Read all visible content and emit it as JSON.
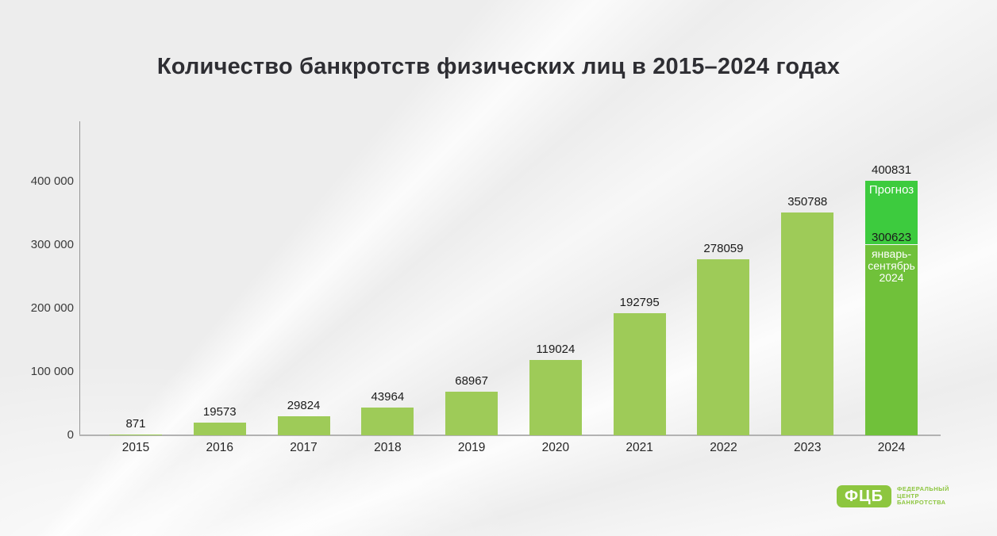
{
  "title": "Количество банкротств физических лиц в 2015–2024 годах",
  "chart_data": {
    "type": "bar",
    "title": "Количество банкротств физических лиц в 2015–2024 годах",
    "categories": [
      "2015",
      "2016",
      "2017",
      "2018",
      "2019",
      "2020",
      "2021",
      "2022",
      "2023",
      "2024"
    ],
    "values": [
      871,
      19573,
      29824,
      43964,
      68967,
      119024,
      192795,
      278059,
      350788,
      400831
    ],
    "value_labels": [
      "871",
      "19573",
      "29824",
      "43964",
      "68967",
      "119024",
      "192795",
      "278059",
      "350788",
      "400831"
    ],
    "forecast": {
      "year": "2024",
      "total": 400831,
      "total_label": "400831",
      "actual": 300623,
      "actual_value_label": "300623",
      "forecast_segment_label": "Прогноз",
      "actual_segment_label": "январь-\nсентябрь\n2024"
    },
    "xlabel": "",
    "ylabel": "",
    "ylim": [
      0,
      450000
    ],
    "yticks": [
      {
        "value": 0,
        "label": "0"
      },
      {
        "value": 100000,
        "label": "100 000"
      },
      {
        "value": 200000,
        "label": "200 000"
      },
      {
        "value": 300000,
        "label": "300 000"
      },
      {
        "value": 400000,
        "label": "400 000"
      }
    ],
    "grid": false,
    "legend": "none",
    "colors": {
      "bar": "#9ecb58",
      "actual_2024": "#70c13a",
      "forecast_2024": "#3dcb3e",
      "axis": "#969696",
      "baseline": "#b2b2b2",
      "label_text": "#1b1b1b"
    }
  },
  "logo": {
    "abbr": "ФЦБ",
    "line1": "ФЕДЕРАЛЬНЫЙ",
    "line2": "ЦЕНТР",
    "line3": "БАНКРОТСТВА",
    "color": "#8dc63f"
  }
}
